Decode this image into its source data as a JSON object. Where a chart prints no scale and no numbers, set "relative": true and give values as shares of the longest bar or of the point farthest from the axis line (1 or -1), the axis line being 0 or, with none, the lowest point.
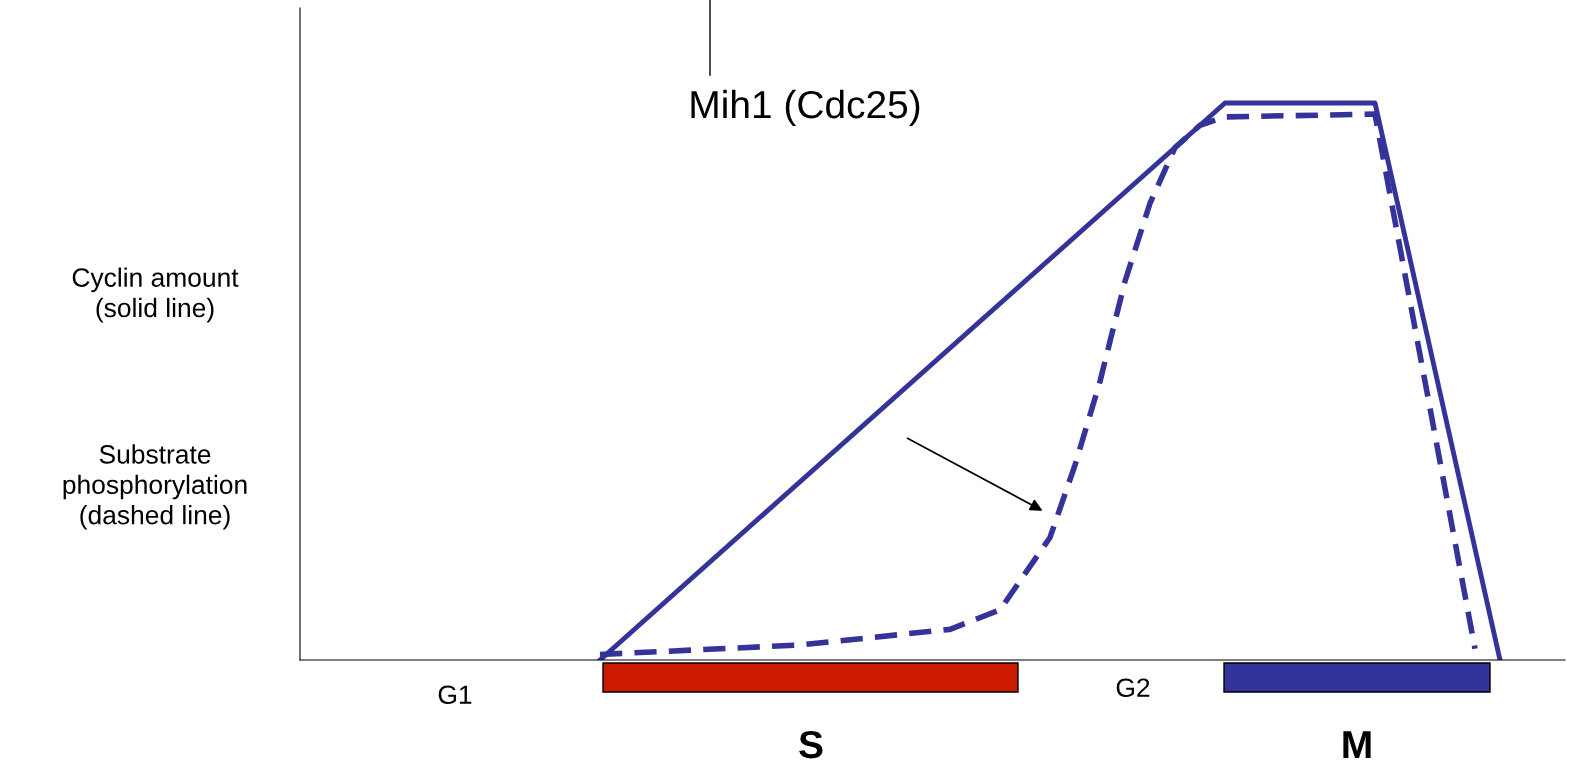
{
  "chart_data": {
    "type": "line",
    "relative": true,
    "grid": false,
    "categories": [
      null,
      null,
      null,
      null,
      null,
      null,
      null,
      null,
      null,
      null,
      null,
      null,
      null,
      null,
      null,
      null,
      null,
      null,
      null,
      null,
      null,
      null,
      null,
      null,
      null,
      null,
      null,
      null,
      null,
      null,
      null,
      null,
      null,
      null,
      null,
      null,
      null,
      null,
      null,
      null,
      null,
      null,
      null,
      null,
      null,
      null,
      null,
      null,
      null,
      null,
      null
    ],
    "series": [
      {
        "color": "#333399",
        "line_style": "solid",
        "values": [
          null,
          null,
          null,
          null,
          null,
          null,
          null,
          null,
          null,
          null,
          null,
          null,
          0,
          null,
          null,
          null,
          null,
          null,
          null,
          null,
          null,
          null,
          null,
          null,
          null,
          null,
          null,
          null,
          null,
          null,
          null,
          null,
          null,
          null,
          null,
          null,
          null,
          1,
          null,
          null,
          null,
          null,
          null,
          1,
          null,
          null,
          null,
          null,
          0,
          null,
          null
        ]
      },
      {
        "color": "#333399",
        "line_style": "dashed",
        "values": [
          null,
          null,
          null,
          null,
          null,
          null,
          null,
          null,
          null,
          null,
          null,
          null,
          0.01,
          null,
          null,
          null,
          null,
          null,
          null,
          null,
          0.027,
          null,
          null,
          null,
          null,
          null,
          0.055,
          null,
          0.09,
          null,
          0.22,
          0.35,
          0.5,
          0.68,
          0.82,
          0.92,
          0.96,
          0.975,
          null,
          null,
          null,
          null,
          null,
          0.98,
          null,
          null,
          null,
          0.02,
          null,
          null,
          null
        ]
      }
    ],
    "annotations": [
      "Mih1 (Cdc25)",
      "Cyclin amount\n(solid line)",
      "Substrate\nphosphorylation\n(dashed line)",
      "G1",
      "G2",
      "S",
      "M"
    ]
  }
}
